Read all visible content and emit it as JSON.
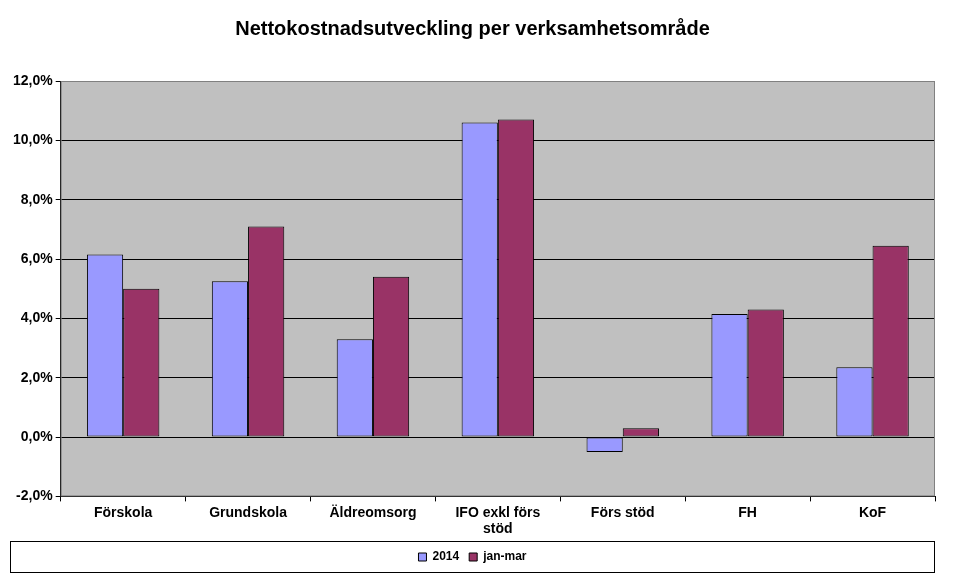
{
  "chart_data": {
    "type": "bar",
    "title": "Nettokostnadsutveckling per verksamhetsområde",
    "categories": [
      "Förskola",
      "Grundskola",
      "Äldreomsorg",
      "IFO exkl förs stöd",
      "Förs stöd",
      "FH",
      "KoF"
    ],
    "series": [
      {
        "name": "2014",
        "color": "#9999ff",
        "values": [
          6.15,
          5.25,
          3.3,
          10.6,
          -0.5,
          4.15,
          2.35
        ]
      },
      {
        "name": "jan-mar",
        "color": "#993366",
        "values": [
          5.0,
          7.1,
          5.4,
          10.7,
          0.3,
          4.3,
          6.45
        ]
      }
    ],
    "ylim": [
      -2,
      12
    ],
    "yticks": [
      {
        "value": -2,
        "label": "-2,0%"
      },
      {
        "value": 0,
        "label": "0,0%"
      },
      {
        "value": 2,
        "label": "2,0%"
      },
      {
        "value": 4,
        "label": "4,0%"
      },
      {
        "value": 6,
        "label": "6,0%"
      },
      {
        "value": 8,
        "label": "8,0%"
      },
      {
        "value": 10,
        "label": "10,0%"
      },
      {
        "value": 12,
        "label": "12,0%"
      }
    ],
    "grid": true,
    "legend": "bottom"
  }
}
